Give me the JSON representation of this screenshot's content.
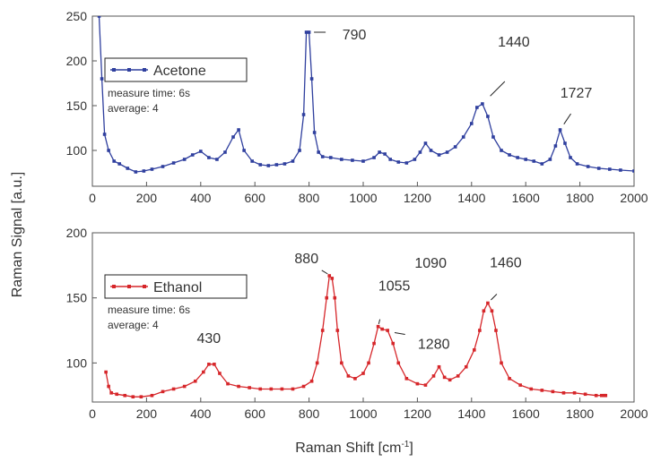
{
  "figure": {
    "ylabel": "Raman Signal [a.u.]",
    "xlabel": "Raman Shift [cm",
    "xlabel_sup": "-1",
    "xlabel_close": "]"
  },
  "colors": {
    "acetone": "#2f3f9e",
    "ethanol": "#d6262a",
    "axis": "#555555"
  },
  "chart_data": [
    {
      "type": "line",
      "xlim": [
        0,
        2000
      ],
      "ylim": [
        60,
        250
      ],
      "xticks": [
        0,
        200,
        400,
        600,
        800,
        1000,
        1200,
        1400,
        1600,
        1800,
        2000
      ],
      "yticks": [
        100,
        150,
        200,
        250
      ],
      "legend": {
        "label": "Acetone",
        "position": "top-left"
      },
      "notes": [
        "measure time: 6s",
        "average: 4"
      ],
      "annotations": [
        {
          "text": "790",
          "x": 795,
          "y": 232
        },
        {
          "text": "1440",
          "x": 1440,
          "y": 152
        },
        {
          "text": "1727",
          "x": 1727,
          "y": 123
        }
      ],
      "series": [
        {
          "name": "Acetone",
          "x": [
            25,
            35,
            45,
            60,
            80,
            100,
            130,
            160,
            190,
            220,
            260,
            300,
            340,
            370,
            400,
            430,
            460,
            490,
            520,
            540,
            560,
            590,
            620,
            650,
            680,
            710,
            740,
            765,
            780,
            790,
            800,
            810,
            820,
            835,
            850,
            880,
            920,
            960,
            1000,
            1040,
            1060,
            1080,
            1100,
            1130,
            1160,
            1190,
            1210,
            1230,
            1250,
            1280,
            1310,
            1340,
            1370,
            1400,
            1420,
            1440,
            1460,
            1480,
            1510,
            1540,
            1570,
            1600,
            1630,
            1660,
            1690,
            1710,
            1727,
            1745,
            1765,
            1790,
            1830,
            1870,
            1910,
            1950,
            2000
          ],
          "values": [
            250,
            180,
            118,
            100,
            88,
            85,
            80,
            76,
            77,
            79,
            82,
            86,
            90,
            95,
            99,
            92,
            90,
            98,
            115,
            123,
            100,
            88,
            84,
            83,
            84,
            85,
            88,
            100,
            140,
            232,
            232,
            180,
            120,
            98,
            93,
            92,
            90,
            89,
            88,
            92,
            98,
            96,
            90,
            87,
            86,
            90,
            98,
            108,
            100,
            95,
            98,
            104,
            115,
            130,
            148,
            152,
            138,
            115,
            100,
            95,
            92,
            90,
            88,
            85,
            90,
            105,
            123,
            108,
            92,
            85,
            82,
            80,
            79,
            78,
            77
          ]
        }
      ]
    },
    {
      "type": "line",
      "xlim": [
        0,
        2000
      ],
      "ylim": [
        70,
        200
      ],
      "xticks": [
        0,
        200,
        400,
        600,
        800,
        1000,
        1200,
        1400,
        1600,
        1800,
        2000
      ],
      "yticks": [
        100,
        150,
        200
      ],
      "legend": {
        "label": "Ethanol",
        "position": "top-left"
      },
      "notes": [
        "measure time: 6s",
        "average: 4"
      ],
      "annotations": [
        {
          "text": "880",
          "x": 880,
          "y": 167
        },
        {
          "text": "1055",
          "x": 1055,
          "y": 128
        },
        {
          "text": "1090",
          "x": 1090,
          "y": 125
        },
        {
          "text": "1280",
          "x": 1095,
          "y": 124
        },
        {
          "text": "1460",
          "x": 1460,
          "y": 146
        },
        {
          "text": "430",
          "x": 430,
          "y": 99
        }
      ],
      "series": [
        {
          "name": "Ethanol",
          "x": [
            50,
            60,
            70,
            90,
            120,
            150,
            180,
            220,
            260,
            300,
            340,
            380,
            410,
            430,
            450,
            470,
            500,
            540,
            580,
            620,
            660,
            700,
            740,
            780,
            810,
            830,
            850,
            865,
            875,
            885,
            895,
            905,
            920,
            945,
            970,
            1000,
            1020,
            1040,
            1055,
            1070,
            1090,
            1110,
            1130,
            1160,
            1200,
            1230,
            1260,
            1280,
            1300,
            1320,
            1350,
            1380,
            1410,
            1430,
            1445,
            1460,
            1475,
            1490,
            1510,
            1540,
            1580,
            1620,
            1660,
            1700,
            1740,
            1780,
            1820,
            1860,
            1880,
            1890,
            1895
          ],
          "values": [
            93,
            82,
            77,
            76,
            75,
            74,
            74,
            75,
            78,
            80,
            82,
            86,
            93,
            99,
            99,
            92,
            84,
            82,
            81,
            80,
            80,
            80,
            80,
            82,
            86,
            100,
            125,
            150,
            167,
            165,
            150,
            125,
            100,
            90,
            88,
            92,
            100,
            115,
            128,
            126,
            125,
            115,
            100,
            88,
            84,
            83,
            90,
            97,
            89,
            87,
            90,
            97,
            110,
            125,
            140,
            146,
            140,
            125,
            100,
            88,
            83,
            80,
            79,
            78,
            77,
            77,
            76,
            75,
            75,
            75,
            75
          ]
        }
      ]
    }
  ]
}
